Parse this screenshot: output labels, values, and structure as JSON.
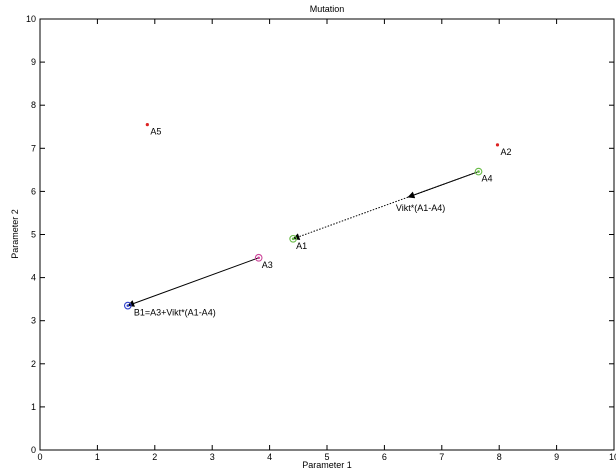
{
  "chart_data": {
    "type": "scatter",
    "title": "Mutation",
    "xlabel": "Parameter 1",
    "ylabel": "Parameter 2",
    "xlim": [
      0,
      10
    ],
    "ylim": [
      0,
      10
    ],
    "xticks": [
      "0",
      "1",
      "2",
      "3",
      "4",
      "5",
      "6",
      "7",
      "8",
      "9",
      "10"
    ],
    "yticks": [
      "0",
      "1",
      "2",
      "3",
      "4",
      "5",
      "6",
      "7",
      "8",
      "9",
      "10"
    ],
    "grid": false,
    "points": [
      {
        "label": "A5",
        "x": 1.87,
        "y": 7.55,
        "marker": "dot",
        "color": "#dd2222"
      },
      {
        "label": "A2",
        "x": 7.97,
        "y": 7.08,
        "marker": "dot",
        "color": "#dd2222"
      },
      {
        "label": "A4",
        "x": 7.64,
        "y": 6.46,
        "marker": "circle-dot",
        "color": "#66bb44"
      },
      {
        "label": "A1",
        "x": 4.41,
        "y": 4.9,
        "marker": "circle-dot",
        "color": "#66bb44"
      },
      {
        "label": "A3",
        "x": 3.81,
        "y": 4.46,
        "marker": "circle-dot",
        "color": "#cc4499"
      },
      {
        "label": "B1=A3+Vikt*(A1-A4)",
        "x": 1.53,
        "y": 3.35,
        "marker": "circle-dot",
        "color": "#3344cc"
      }
    ],
    "arrows": [
      {
        "from": [
          7.64,
          6.46
        ],
        "to": [
          4.41,
          4.9
        ],
        "style": "dotted"
      },
      {
        "from": [
          3.81,
          4.46
        ],
        "to": [
          1.53,
          3.35
        ],
        "style": "solid"
      }
    ],
    "annotations": [
      {
        "text": "Vikt*(A1-A4)",
        "x": 6.2,
        "y": 5.55
      }
    ]
  }
}
